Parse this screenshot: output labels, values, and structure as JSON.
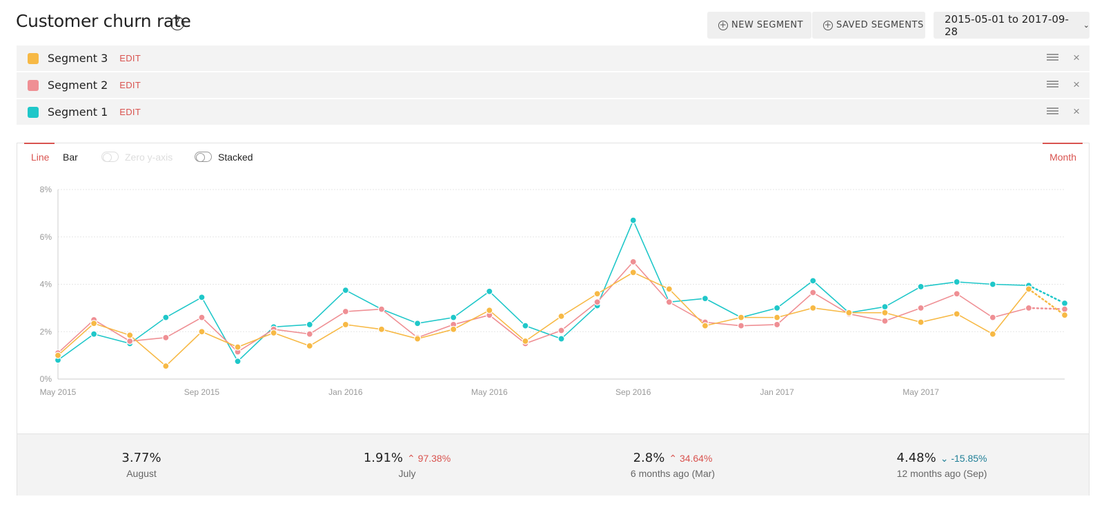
{
  "header": {
    "title": "Customer churn rate",
    "help_icon": "?",
    "new_segment_label": "NEW SEGMENT",
    "saved_segments_label": "SAVED SEGMENTS",
    "date_range": "2015-05-01 to 2017-09-28"
  },
  "segments": [
    {
      "label": "Segment 3",
      "edit": "EDIT",
      "color": "#f7b945"
    },
    {
      "label": "Segment 2",
      "edit": "EDIT",
      "color": "#ef8f94"
    },
    {
      "label": "Segment 1",
      "edit": "EDIT",
      "color": "#1fc7c9"
    }
  ],
  "controls": {
    "line_tab": "Line",
    "bar_tab": "Bar",
    "zero_y_axis": "Zero y-axis",
    "stacked": "Stacked",
    "period": "Month"
  },
  "chart_data": {
    "type": "line",
    "x": [
      "May 2015",
      "Jun 2015",
      "Jul 2015",
      "Aug 2015",
      "Sep 2015",
      "Oct 2015",
      "Nov 2015",
      "Dec 2015",
      "Jan 2016",
      "Feb 2016",
      "Mar 2016",
      "Apr 2016",
      "May 2016",
      "Jun 2016",
      "Jul 2016",
      "Aug 2016",
      "Sep 2016",
      "Oct 2016",
      "Nov 2016",
      "Dec 2016",
      "Jan 2017",
      "Feb 2017",
      "Mar 2017",
      "Apr 2017",
      "May 2017",
      "Jun 2017",
      "Jul 2017",
      "Aug 2017",
      "Sep 2017"
    ],
    "x_tick_labels": [
      "May 2015",
      "Sep 2015",
      "Jan 2016",
      "May 2016",
      "Sep 2016",
      "Jan 2017",
      "May 2017"
    ],
    "y_tick_labels": [
      "0%",
      "2%",
      "4%",
      "6%",
      "8%"
    ],
    "ylim": [
      0,
      8
    ],
    "grid": true,
    "partial_last_point": true,
    "series": [
      {
        "color": "#1fc7c9",
        "values": [
          0.8,
          1.9,
          1.5,
          2.6,
          3.45,
          0.75,
          2.2,
          2.3,
          3.75,
          2.95,
          2.35,
          2.6,
          3.7,
          2.25,
          1.7,
          3.1,
          6.7,
          3.25,
          3.4,
          2.6,
          3.0,
          4.15,
          2.8,
          3.05,
          3.9,
          4.1,
          4.0,
          3.95,
          3.2
        ]
      },
      {
        "color": "#ef8f94",
        "values": [
          1.1,
          2.5,
          1.6,
          1.75,
          2.6,
          1.15,
          2.1,
          1.9,
          2.85,
          2.95,
          1.75,
          2.3,
          2.7,
          1.5,
          2.05,
          3.25,
          4.95,
          3.25,
          2.4,
          2.25,
          2.3,
          3.65,
          2.75,
          2.45,
          3.0,
          3.6,
          2.6,
          3.0,
          2.95
        ]
      },
      {
        "color": "#f7b945",
        "values": [
          1.0,
          2.35,
          1.85,
          0.55,
          2.0,
          1.35,
          1.95,
          1.4,
          2.3,
          2.1,
          1.7,
          2.1,
          2.9,
          1.6,
          2.65,
          3.6,
          4.5,
          3.8,
          2.25,
          2.6,
          2.6,
          3.0,
          2.8,
          2.8,
          2.4,
          2.75,
          1.9,
          3.8,
          2.7
        ]
      }
    ]
  },
  "stats": [
    {
      "value": "3.77%",
      "change": "",
      "direction": "",
      "label": "August"
    },
    {
      "value": "1.91%",
      "change": "97.38%",
      "direction": "up",
      "label": "July"
    },
    {
      "value": "2.8%",
      "change": "34.64%",
      "direction": "up",
      "label": "6 months ago (Mar)"
    },
    {
      "value": "4.48%",
      "change": "-15.85%",
      "direction": "down",
      "label": "12 months ago (Sep)"
    }
  ]
}
